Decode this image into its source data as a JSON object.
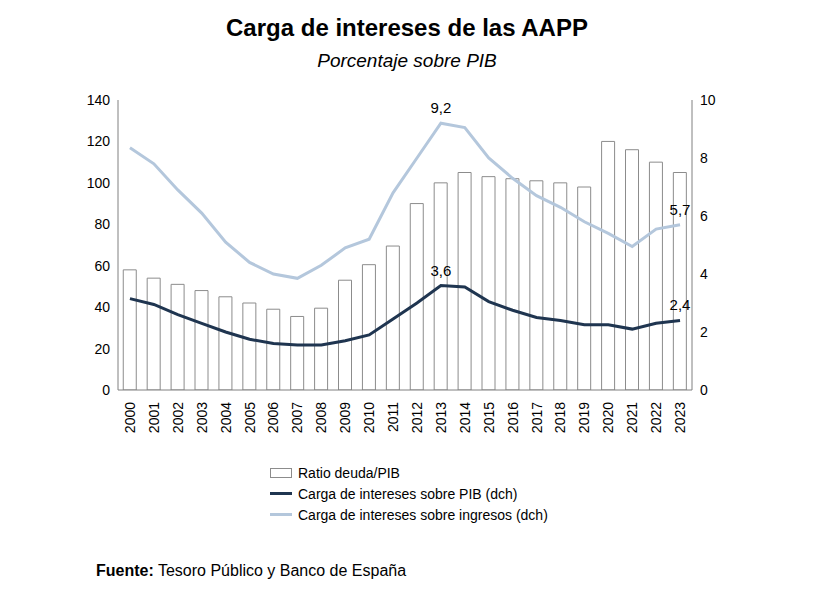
{
  "chart_data": {
    "type": "bar",
    "title": "Carga de intereses de las AAPP",
    "subtitle": "Porcentaje sobre PIB",
    "source_label": "Fuente:",
    "source": "Tesoro Público y Banco de España",
    "categories": [
      "2000",
      "2001",
      "2002",
      "2003",
      "2004",
      "2005",
      "2006",
      "2007",
      "2008",
      "2009",
      "2010",
      "2011",
      "2012",
      "2013",
      "2014",
      "2015",
      "2016",
      "2017",
      "2018",
      "2019",
      "2020",
      "2021",
      "2022",
      "2023"
    ],
    "series": [
      {
        "name": "Ratio deuda/PIB",
        "type": "bar",
        "color": "#ffffff",
        "values": [
          58,
          54,
          51,
          48,
          45,
          42,
          39,
          35.5,
          39.5,
          53,
          60.5,
          69.5,
          90,
          100,
          105,
          103,
          102,
          101,
          100,
          98,
          120,
          116,
          110,
          105
        ]
      },
      {
        "name": "Carga de intereses sobre PIB (dch)",
        "type": "line",
        "axis": "y2",
        "color": "#1f3550",
        "values": [
          3.15,
          2.95,
          2.6,
          2.3,
          2.0,
          1.75,
          1.6,
          1.55,
          1.55,
          1.7,
          1.9,
          2.45,
          3.0,
          3.6,
          3.55,
          3.05,
          2.75,
          2.5,
          2.4,
          2.25,
          2.25,
          2.1,
          2.3,
          2.4
        ],
        "value_labels": [
          null,
          null,
          null,
          null,
          null,
          null,
          null,
          null,
          null,
          null,
          null,
          null,
          null,
          "3,6",
          null,
          null,
          null,
          null,
          null,
          null,
          null,
          null,
          null,
          "2,4"
        ]
      },
      {
        "name": "Carga de intereses sobre ingresos (dch)",
        "type": "line",
        "axis": "y2",
        "color": "#b4c7dc",
        "values": [
          8.35,
          7.8,
          6.9,
          6.1,
          5.1,
          4.4,
          4.0,
          3.85,
          4.3,
          4.9,
          5.2,
          6.8,
          8.0,
          9.2,
          9.05,
          8.0,
          7.3,
          6.7,
          6.3,
          5.8,
          5.4,
          4.95,
          5.55,
          5.7
        ],
        "value_labels": [
          null,
          null,
          null,
          null,
          null,
          null,
          null,
          null,
          null,
          null,
          null,
          null,
          null,
          "9,2",
          null,
          null,
          null,
          null,
          null,
          null,
          null,
          null,
          null,
          "5,7"
        ]
      }
    ],
    "ylim": [
      0,
      140
    ],
    "yticks": [
      0,
      20,
      40,
      60,
      80,
      100,
      120,
      140
    ],
    "y2lim": [
      0,
      10
    ],
    "y2ticks": [
      0,
      2,
      4,
      6,
      8,
      10
    ],
    "grid": false,
    "legend": "bottom"
  }
}
